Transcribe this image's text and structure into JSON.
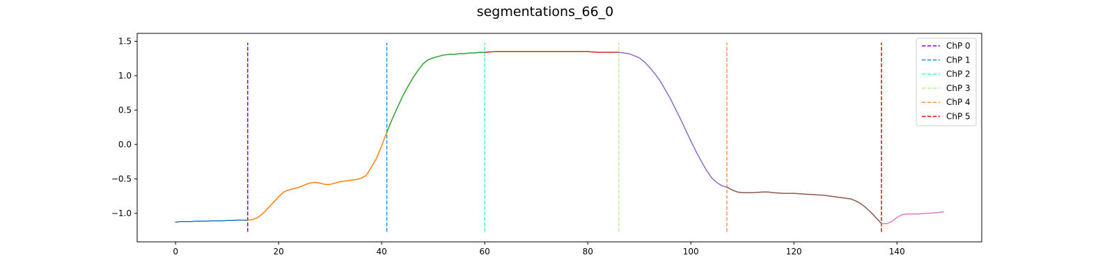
{
  "chart_data": {
    "type": "line",
    "title": "segmentations_66_0",
    "xlabel": "",
    "ylabel": "",
    "xlim": [
      -7.45,
      156.45
    ],
    "ylim": [
      -1.415,
      1.615
    ],
    "xticks": [
      0,
      20,
      40,
      60,
      80,
      100,
      120,
      140
    ],
    "yticks": [
      -1.0,
      -0.5,
      0.0,
      0.5,
      1.0,
      1.5
    ],
    "ytick_labels": [
      "−1.0",
      "−0.5",
      "0.0",
      "0.5",
      "1.0",
      "1.5"
    ],
    "grid": false,
    "legend_position": "top-right",
    "series": [
      {
        "color": "#1f77b4",
        "x": [
          0,
          1,
          2,
          3,
          4,
          5,
          6,
          7,
          8,
          9,
          10,
          11,
          12,
          13,
          14
        ],
        "values": [
          -1.13,
          -1.12,
          -1.12,
          -1.12,
          -1.115,
          -1.115,
          -1.115,
          -1.11,
          -1.11,
          -1.11,
          -1.105,
          -1.105,
          -1.1,
          -1.1,
          -1.1
        ]
      },
      {
        "color": "#ff7f0e",
        "x": [
          14,
          15,
          16,
          17,
          18,
          19,
          20,
          21,
          22,
          23,
          24,
          25,
          26,
          27,
          28,
          29,
          30,
          31,
          32,
          33,
          34,
          35,
          36,
          37,
          38,
          39,
          40,
          41
        ],
        "values": [
          -1.1,
          -1.09,
          -1.06,
          -1.0,
          -0.92,
          -0.84,
          -0.76,
          -0.69,
          -0.66,
          -0.64,
          -0.62,
          -0.59,
          -0.56,
          -0.55,
          -0.56,
          -0.58,
          -0.58,
          -0.56,
          -0.54,
          -0.53,
          -0.52,
          -0.51,
          -0.49,
          -0.45,
          -0.33,
          -0.2,
          -0.02,
          0.18
        ]
      },
      {
        "color": "#2ca02c",
        "x": [
          41,
          42,
          43,
          44,
          45,
          46,
          47,
          48,
          49,
          50,
          51,
          52,
          53,
          54,
          55,
          56,
          57,
          58,
          59,
          60
        ],
        "values": [
          0.18,
          0.36,
          0.53,
          0.69,
          0.83,
          0.96,
          1.07,
          1.17,
          1.23,
          1.26,
          1.28,
          1.3,
          1.31,
          1.31,
          1.32,
          1.32,
          1.33,
          1.33,
          1.34,
          1.34
        ]
      },
      {
        "color": "#d62728",
        "x": [
          60,
          62,
          64,
          66,
          68,
          70,
          72,
          74,
          76,
          78,
          80,
          82,
          84,
          86
        ],
        "values": [
          1.34,
          1.35,
          1.35,
          1.35,
          1.35,
          1.35,
          1.35,
          1.35,
          1.35,
          1.35,
          1.35,
          1.34,
          1.34,
          1.34
        ]
      },
      {
        "color": "#9467bd",
        "x": [
          86,
          88,
          90,
          91,
          92,
          93,
          94,
          95,
          96,
          97,
          98,
          99,
          100,
          101,
          102,
          103,
          104,
          105,
          106,
          107
        ],
        "values": [
          1.34,
          1.32,
          1.26,
          1.2,
          1.12,
          1.03,
          0.93,
          0.8,
          0.67,
          0.52,
          0.37,
          0.21,
          0.05,
          -0.1,
          -0.24,
          -0.37,
          -0.48,
          -0.55,
          -0.6,
          -0.62
        ]
      },
      {
        "color": "#8c564b",
        "x": [
          107,
          108,
          109,
          110,
          111,
          112,
          114,
          115,
          116,
          118,
          120,
          122,
          124,
          126,
          128,
          130,
          131,
          132,
          133,
          134,
          135,
          136,
          137
        ],
        "values": [
          -0.62,
          -0.66,
          -0.69,
          -0.7,
          -0.7,
          -0.7,
          -0.69,
          -0.69,
          -0.7,
          -0.71,
          -0.71,
          -0.72,
          -0.73,
          -0.74,
          -0.76,
          -0.78,
          -0.79,
          -0.82,
          -0.86,
          -0.92,
          -0.99,
          -1.07,
          -1.15
        ]
      },
      {
        "color": "#e377c2",
        "x": [
          137,
          138,
          139,
          140,
          141,
          142,
          143,
          144,
          146,
          148,
          149
        ],
        "values": [
          -1.15,
          -1.15,
          -1.12,
          -1.06,
          -1.02,
          -1.01,
          -1.01,
          -1.01,
          -1.0,
          -0.99,
          -0.98
        ]
      }
    ],
    "changepoints": [
      {
        "name": "ChP 0",
        "x": 14,
        "color": "#8000ff"
      },
      {
        "name": "ChP 1",
        "x": 41,
        "color": "#1996f3"
      },
      {
        "name": "ChP 2",
        "x": 60,
        "color": "#4df3ce"
      },
      {
        "name": "ChP 3",
        "x": 86,
        "color": "#b2f396"
      },
      {
        "name": "ChP 4",
        "x": 107,
        "color": "#ff964f"
      },
      {
        "name": "ChP 5",
        "x": 137,
        "color": "#ff0000"
      }
    ],
    "changepoint_ymin": -1.27,
    "changepoint_ymax": 1.48
  }
}
